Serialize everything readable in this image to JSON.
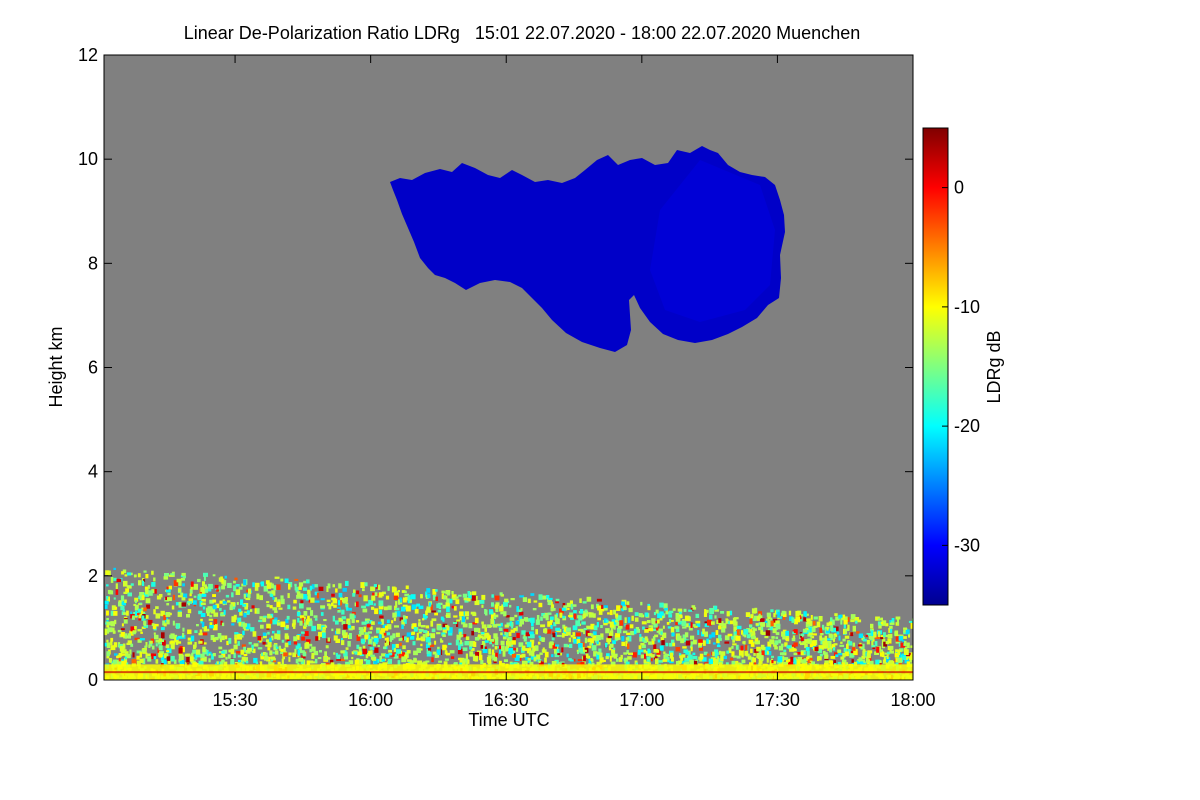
{
  "chart_data": {
    "type": "heatmap",
    "title": "Linear De-Polarization Ratio LDRg   15:01 22.07.2020 - 18:00 22.07.2020 Muenchen",
    "xlabel": "Time UTC",
    "ylabel": "Height km",
    "x_range": [
      "15:01",
      "18:00"
    ],
    "y_range": [
      0,
      12
    ],
    "x_ticks": [
      "15:30",
      "16:00",
      "16:30",
      "17:00",
      "17:30",
      "18:00"
    ],
    "y_ticks": [
      0,
      2,
      4,
      6,
      8,
      10,
      12
    ],
    "grid": false,
    "colorbar": {
      "label": "LDRg dB",
      "range": [
        -35,
        5
      ],
      "ticks": [
        0,
        -10,
        -20,
        -30
      ],
      "colormap": "jet"
    },
    "background_color": "#808080",
    "features": [
      {
        "kind": "cirrus cloud",
        "approx_ldrg_db": -33,
        "color": "#0000c8",
        "time_range": [
          "16:03",
          "17:36"
        ],
        "height_range_km": [
          6.3,
          10.2
        ]
      },
      {
        "kind": "boundary layer aerosol",
        "approx_ldrg_db_range": [
          -22,
          -8
        ],
        "time_range": [
          "15:01",
          "18:00"
        ],
        "height_range_km": [
          0,
          2.2
        ]
      }
    ]
  }
}
